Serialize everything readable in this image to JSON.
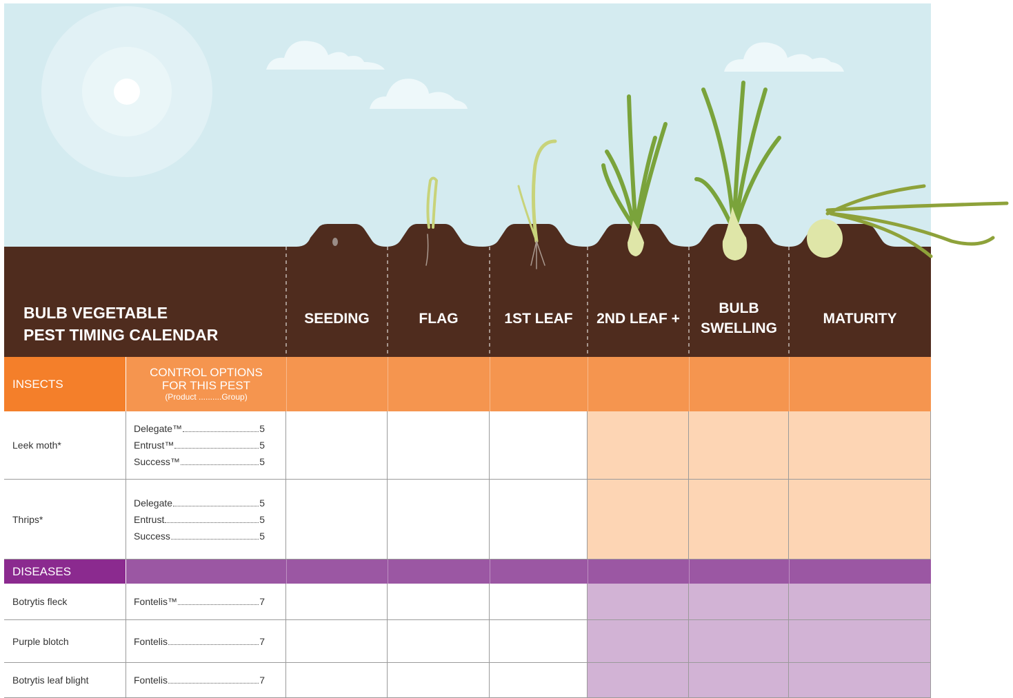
{
  "header": {
    "title": [
      "BULB VEGETABLE",
      "PEST TIMING CALENDAR"
    ],
    "stages": [
      [
        "SEEDING"
      ],
      [
        "FLAG"
      ],
      [
        "1ST LEAF"
      ],
      [
        "2ND LEAF +"
      ],
      [
        "BULB",
        "SWELLING"
      ],
      [
        "MATURITY"
      ]
    ]
  },
  "sections": [
    {
      "label": "INSECTS",
      "label_color": "#f47f2a",
      "band_color": "#f5954f",
      "highlight_color": "#fdd5b4",
      "control_header": [
        "CONTROL OPTIONS",
        "FOR THIS PEST"
      ],
      "control_note": "(Product ..........Group)",
      "rows": [
        {
          "pest": "Leek moth*",
          "products": [
            {
              "name": "Delegate™",
              "group": 5
            },
            {
              "name": "Entrust™",
              "group": 5
            },
            {
              "name": "Success™",
              "group": 5
            }
          ],
          "active": [
            false,
            false,
            false,
            true,
            true,
            true
          ]
        },
        {
          "pest": "Thrips*",
          "products": [
            {
              "name": "Delegate",
              "group": 5
            },
            {
              "name": "Entrust",
              "group": 5
            },
            {
              "name": "Success",
              "group": 5
            }
          ],
          "active": [
            false,
            false,
            false,
            true,
            true,
            true
          ]
        }
      ]
    },
    {
      "label": "DISEASES",
      "label_color": "#8b2a8f",
      "band_color": "#9b57a3",
      "highlight_color": "#d2b3d5",
      "rows": [
        {
          "pest": "Botrytis fleck",
          "products": [
            {
              "name": "Fontelis™",
              "group": 7
            }
          ],
          "active": [
            false,
            false,
            false,
            true,
            true,
            true
          ]
        },
        {
          "pest": "Purple blotch",
          "products": [
            {
              "name": "Fontelis",
              "group": 7
            }
          ],
          "active": [
            false,
            false,
            false,
            true,
            true,
            true
          ]
        },
        {
          "pest": "Botrytis leaf blight",
          "products": [
            {
              "name": "Fontelis",
              "group": 7
            }
          ],
          "active": [
            false,
            false,
            false,
            true,
            true,
            true
          ]
        }
      ]
    }
  ]
}
